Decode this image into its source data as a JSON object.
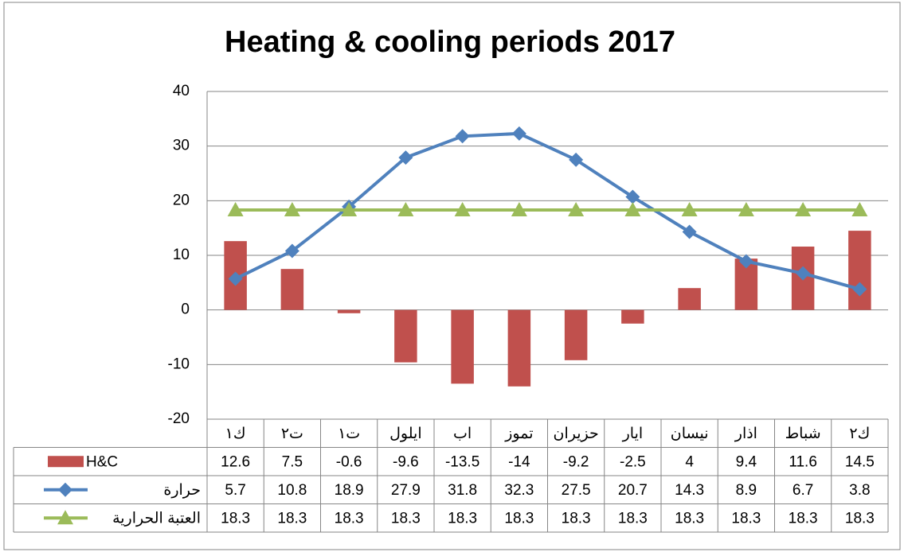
{
  "chart_data": {
    "type": "bar",
    "title": "Heating & cooling periods 2017",
    "categories": [
      "ك١",
      "ت٢",
      "ت١",
      "ايلول",
      "اب",
      "تموز",
      "حزيران",
      "ايار",
      "نيسان",
      "اذار",
      "شباط",
      "ك٢"
    ],
    "series": [
      {
        "name": "H&C",
        "type": "bar",
        "color": "#c0504d",
        "values": [
          12.6,
          7.5,
          -0.6,
          -9.6,
          -13.5,
          -14,
          -9.2,
          -2.5,
          4,
          9.4,
          11.6,
          14.5
        ]
      },
      {
        "name": "حرارة",
        "type": "line",
        "marker": "diamond",
        "color": "#4f81bd",
        "values": [
          5.7,
          10.8,
          18.9,
          27.9,
          31.8,
          32.3,
          27.5,
          20.7,
          14.3,
          8.9,
          6.7,
          3.8
        ]
      },
      {
        "name": "العتبة الحرارية",
        "type": "line",
        "marker": "triangle",
        "color": "#9bbb59",
        "values": [
          18.3,
          18.3,
          18.3,
          18.3,
          18.3,
          18.3,
          18.3,
          18.3,
          18.3,
          18.3,
          18.3,
          18.3
        ]
      }
    ],
    "ylim": [
      -20,
      40
    ],
    "yticks": [
      -20,
      -10,
      0,
      10,
      20,
      30,
      40
    ],
    "grid": true
  }
}
